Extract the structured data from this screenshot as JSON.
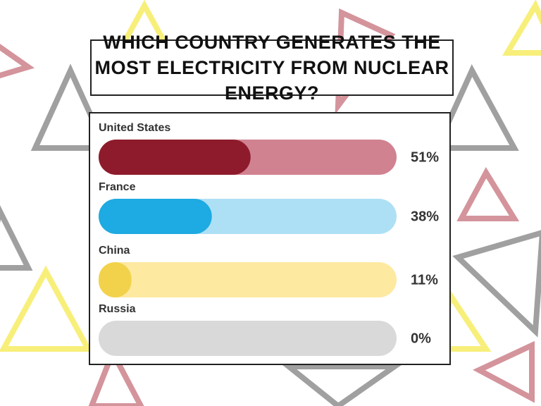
{
  "chart_data": {
    "type": "bar",
    "orientation": "horizontal",
    "title": "WHICH COUNTRY GENERATES THE MOST ELECTRICITY FROM NUCLEAR ENERGY?",
    "categories": [
      "United States",
      "France",
      "China",
      "Russia"
    ],
    "values": [
      51,
      38,
      11,
      0
    ],
    "value_labels": [
      "51%",
      "38%",
      "11%",
      "0%"
    ],
    "colors": [
      "#8e1b2b",
      "#1eaae2",
      "#f2d24b",
      "#d9d9d9"
    ],
    "track_colors": [
      "#d08290",
      "#aee0f5",
      "#fde9a0",
      "#d9d9d9"
    ]
  }
}
